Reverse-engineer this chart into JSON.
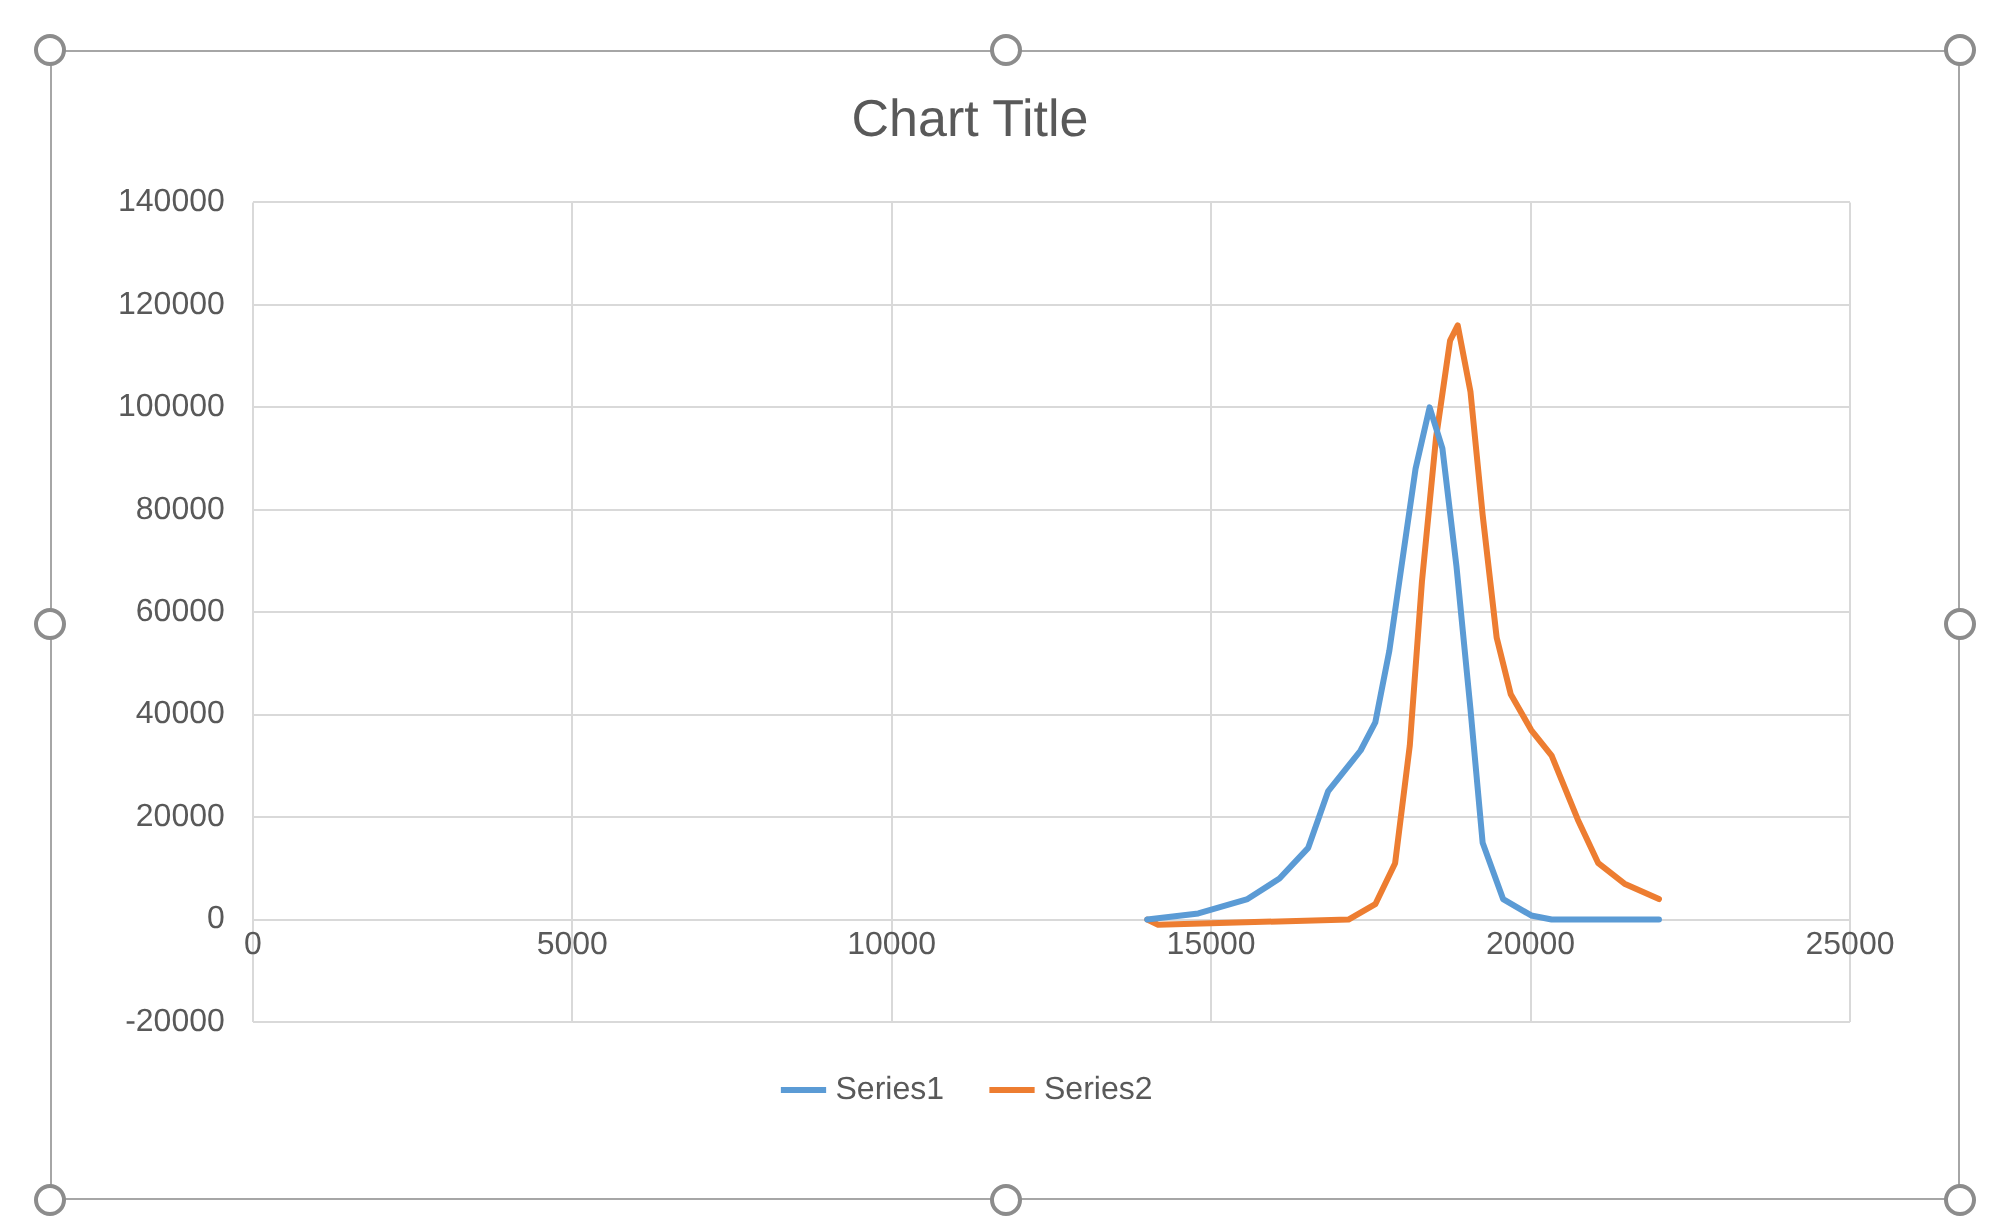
{
  "chart_data": {
    "type": "line",
    "title": "Chart Title",
    "xlim": [
      0,
      25000
    ],
    "xticks": [
      0,
      5000,
      10000,
      15000,
      20000,
      25000
    ],
    "ylim": [
      -20000,
      140000
    ],
    "yticks": [
      -20000,
      0,
      20000,
      40000,
      60000,
      80000,
      100000,
      120000,
      140000
    ],
    "grid": true,
    "legend": "bottom",
    "marker": "none",
    "line_style": "solid",
    "series": [
      {
        "name": "Series1",
        "color": "#5b9bd5",
        "x": [
          14000,
          14800,
          15570,
          16070,
          16520,
          16830,
          17340,
          17570,
          17790,
          17980,
          18200,
          18420,
          18620,
          18840,
          19060,
          19250,
          19570,
          20010,
          20330,
          22010
        ],
        "values": [
          0,
          1200,
          4000,
          8000,
          14000,
          25000,
          33000,
          38500,
          52500,
          69000,
          88000,
          100000,
          92000,
          69000,
          41000,
          15000,
          4000,
          800,
          0,
          0
        ]
      },
      {
        "name": "Series2",
        "color": "#ed7d31",
        "x": [
          14000,
          14170,
          17150,
          17570,
          17880,
          18110,
          18300,
          18520,
          18740,
          18860,
          19060,
          19250,
          19470,
          19690,
          20010,
          20330,
          20740,
          21060,
          21470,
          22010
        ],
        "values": [
          0,
          -1000,
          0,
          3000,
          11000,
          34000,
          66000,
          94000,
          113000,
          116000,
          103000,
          79000,
          55000,
          44000,
          37000,
          32000,
          19500,
          11000,
          7000,
          4000
        ]
      }
    ]
  }
}
